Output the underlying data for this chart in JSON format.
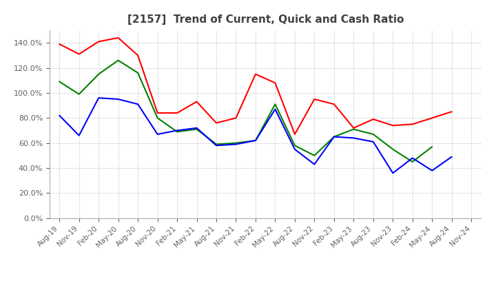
{
  "title": "[2157]  Trend of Current, Quick and Cash Ratio",
  "labels": [
    "Aug-19",
    "Nov-19",
    "Feb-20",
    "May-20",
    "Aug-20",
    "Nov-20",
    "Feb-21",
    "May-21",
    "Aug-21",
    "Nov-21",
    "Feb-22",
    "May-22",
    "Aug-22",
    "Nov-22",
    "Feb-23",
    "May-23",
    "Aug-23",
    "Nov-23",
    "Feb-24",
    "May-24",
    "Aug-24",
    "Nov-24"
  ],
  "current_ratio": [
    139,
    131,
    141,
    144,
    130,
    84,
    84,
    93,
    76,
    80,
    115,
    108,
    67,
    95,
    91,
    72,
    79,
    74,
    75,
    80,
    85,
    null
  ],
  "quick_ratio": [
    109,
    99,
    115,
    126,
    116,
    80,
    69,
    71,
    59,
    60,
    62,
    91,
    58,
    50,
    65,
    71,
    67,
    55,
    45,
    57,
    null,
    null
  ],
  "cash_ratio": [
    82,
    66,
    96,
    95,
    91,
    67,
    70,
    72,
    58,
    59,
    62,
    87,
    55,
    43,
    65,
    64,
    61,
    36,
    48,
    38,
    49,
    null
  ],
  "current_color": "#FF0000",
  "quick_color": "#008000",
  "cash_color": "#0000FF",
  "ylim": [
    0,
    150
  ],
  "yticks": [
    0,
    20,
    40,
    60,
    80,
    100,
    120,
    140
  ],
  "background_color": "#FFFFFF",
  "grid_color": "#BBBBBB",
  "title_color": "#404040",
  "tick_color": "#606060"
}
